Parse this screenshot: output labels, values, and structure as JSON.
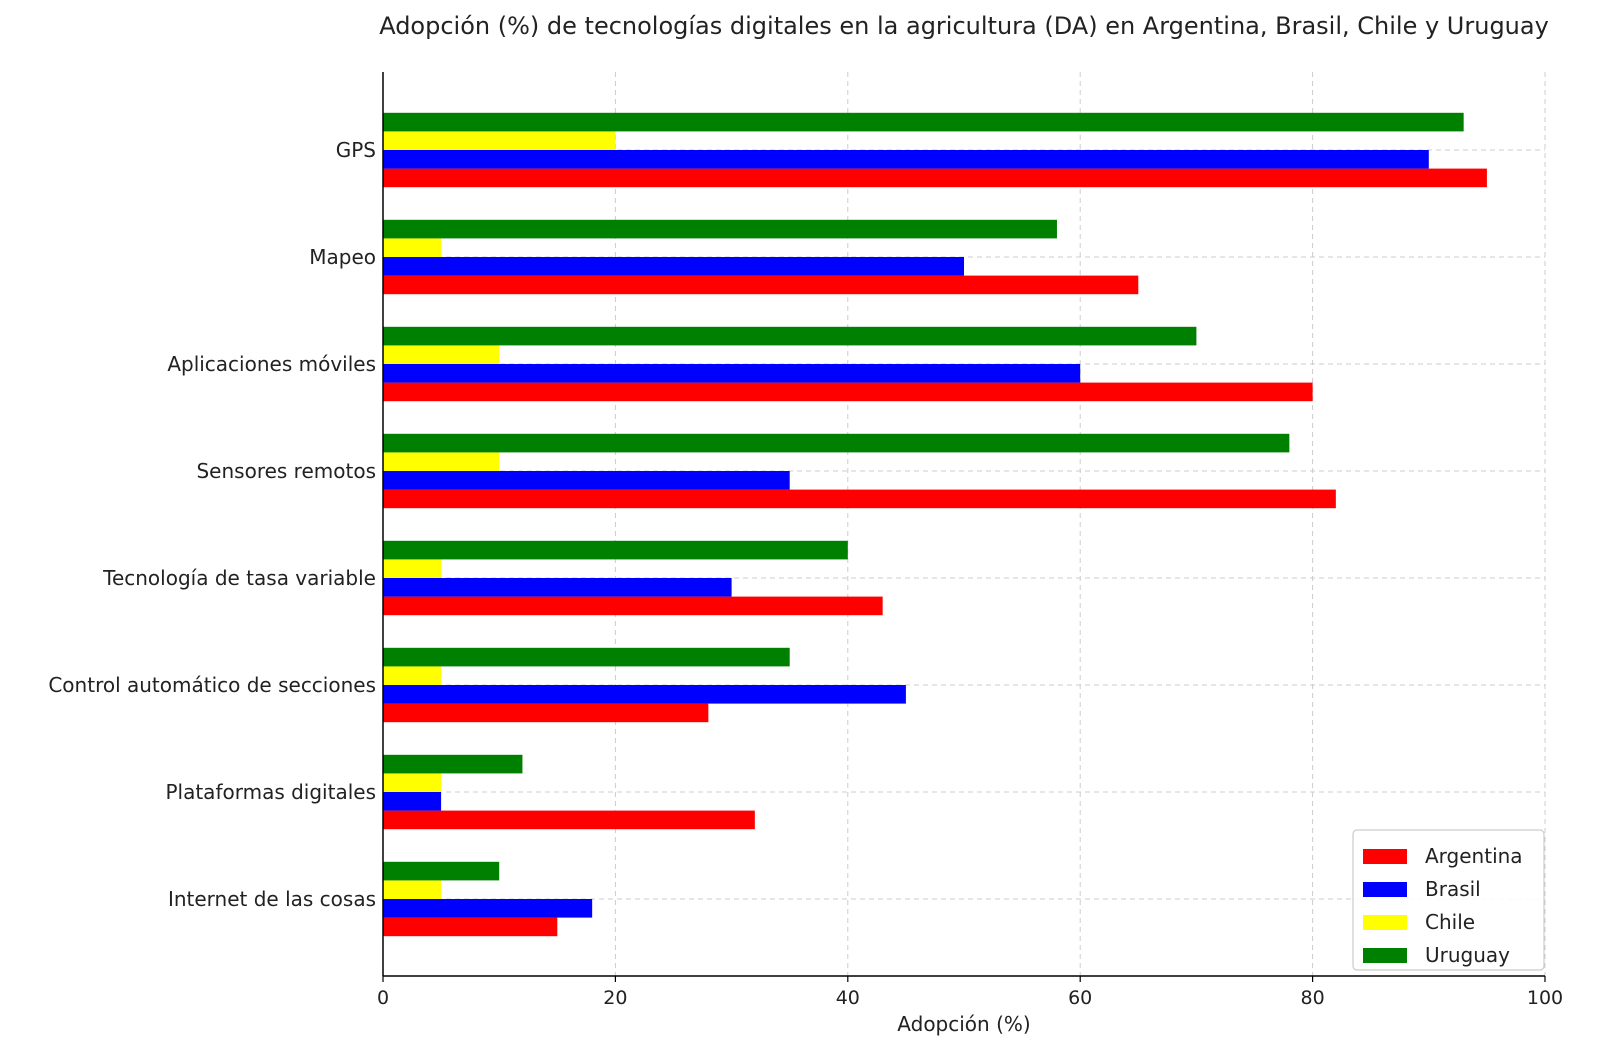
{
  "chart_data": {
    "type": "bar",
    "orientation": "horizontal",
    "title": "Adopción (%) de tecnologías digitales en la agricultura (DA) en Argentina, Brasil, Chile y Uruguay",
    "xlabel": "Adopción (%)",
    "ylabel": "",
    "xlim": [
      0,
      100
    ],
    "xticks": [
      0,
      20,
      40,
      60,
      80,
      100
    ],
    "grid": true,
    "legend_position": "bottom-right",
    "categories": [
      "GPS",
      "Mapeo",
      "Aplicaciones móviles",
      "Sensores remotos",
      "Tecnología de tasa variable",
      "Control automático de secciones",
      "Plataformas digitales",
      "Internet de las cosas"
    ],
    "series": [
      {
        "name": "Argentina",
        "color": "#ff0000",
        "values": [
          95,
          65,
          80,
          82,
          43,
          28,
          32,
          15
        ]
      },
      {
        "name": "Brasil",
        "color": "#0000ff",
        "values": [
          90,
          50,
          60,
          35,
          30,
          45,
          5,
          18
        ]
      },
      {
        "name": "Chile",
        "color": "#ffff00",
        "values": [
          20,
          5,
          10,
          10,
          5,
          5,
          5,
          5
        ]
      },
      {
        "name": "Uruguay",
        "color": "#008000",
        "values": [
          93,
          58,
          70,
          78,
          40,
          35,
          12,
          10
        ]
      }
    ]
  }
}
